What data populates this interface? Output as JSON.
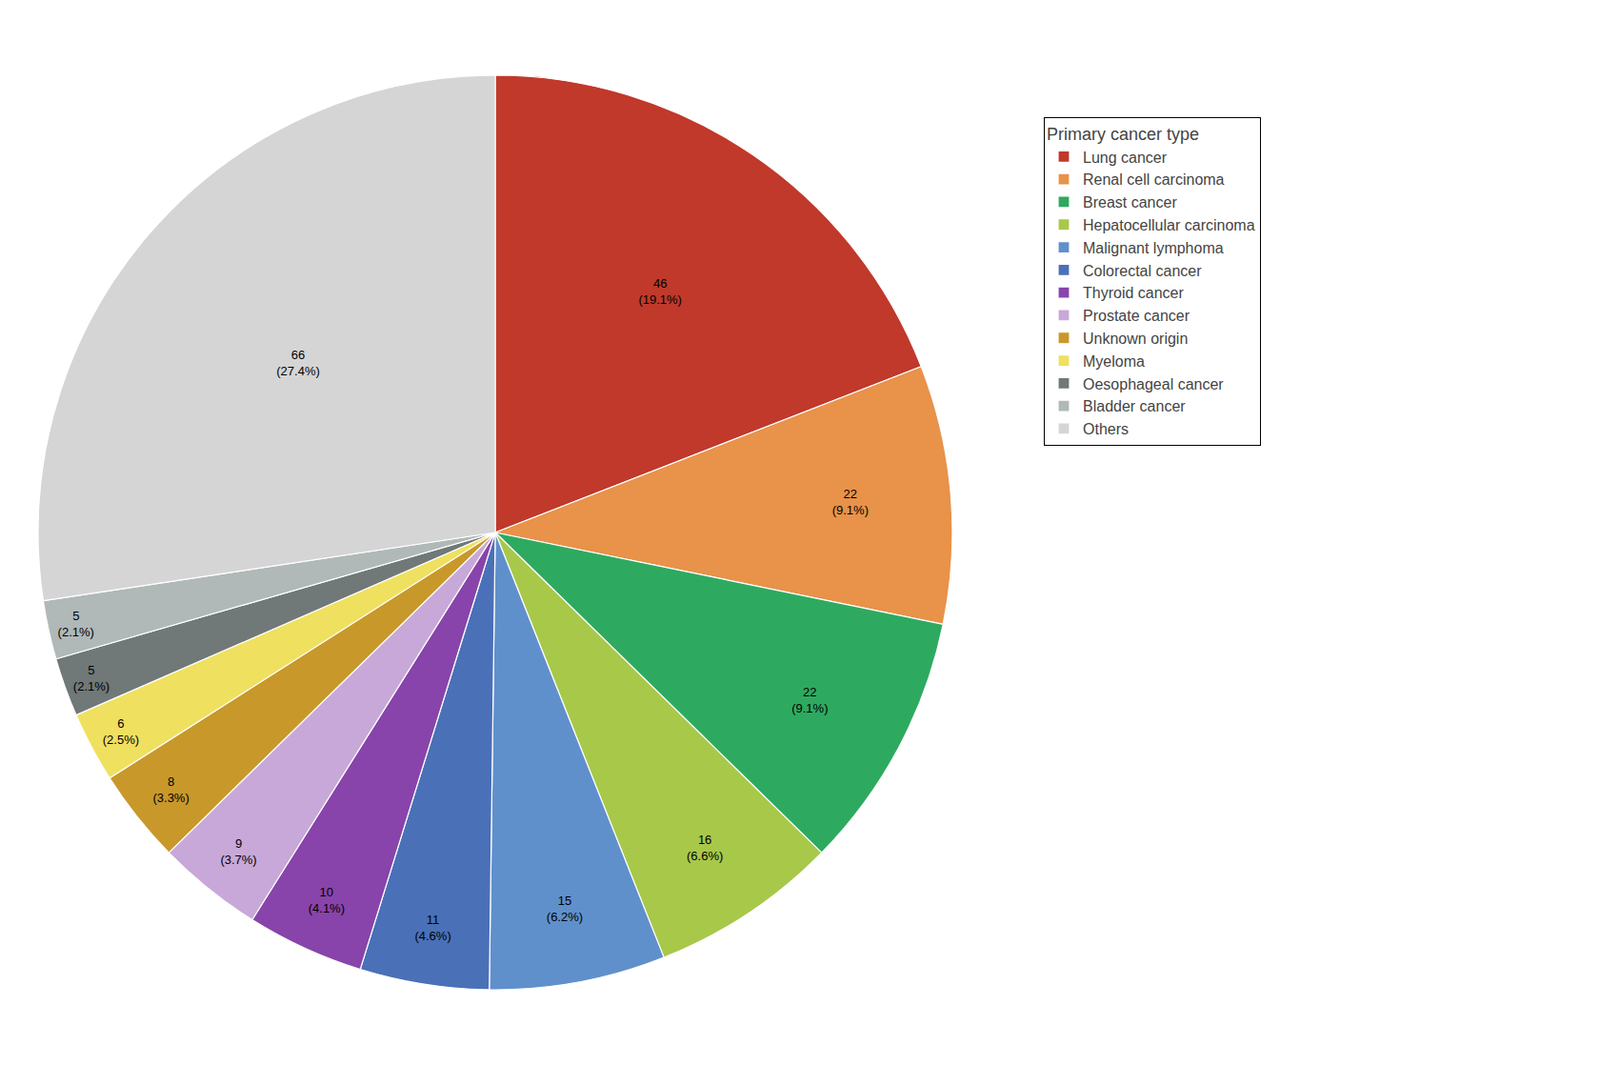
{
  "chart_data": {
    "type": "pie",
    "legend_title": "Primary cancer type",
    "categories": [
      "Lung cancer",
      "Renal cell carcinoma",
      "Breast cancer",
      "Hepatocellular carcinoma",
      "Malignant lymphoma",
      "Colorectal cancer",
      "Thyroid cancer",
      "Prostate cancer",
      "Unknown origin",
      "Myeloma",
      "Oesophageal cancer",
      "Bladder cancer",
      "Others"
    ],
    "values": [
      46,
      22,
      22,
      16,
      15,
      11,
      10,
      9,
      8,
      6,
      5,
      5,
      66
    ],
    "value_labels": [
      "46\n(19.1%)",
      "22\n(9.1%)",
      "22\n(9.1%)",
      "16\n(6.6%)",
      "15\n(6.2%)",
      "11\n(4.6%)",
      "10\n(4.1%)",
      "9\n(3.7%)",
      "8\n(3.3%)",
      "6\n(2.5%)",
      "5\n(2.1%)",
      "5\n(2.1%)",
      "66\n(27.4%)"
    ],
    "colors": [
      "#c0392b",
      "#e8924a",
      "#2eaa60",
      "#a8c84a",
      "#6090cc",
      "#4a70b8",
      "#8844aa",
      "#c8a8d8",
      "#c8982a",
      "#f0e060",
      "#707878",
      "#b0b8b8",
      "#d5d5d5"
    ],
    "data_labels": true,
    "legend": "right"
  }
}
